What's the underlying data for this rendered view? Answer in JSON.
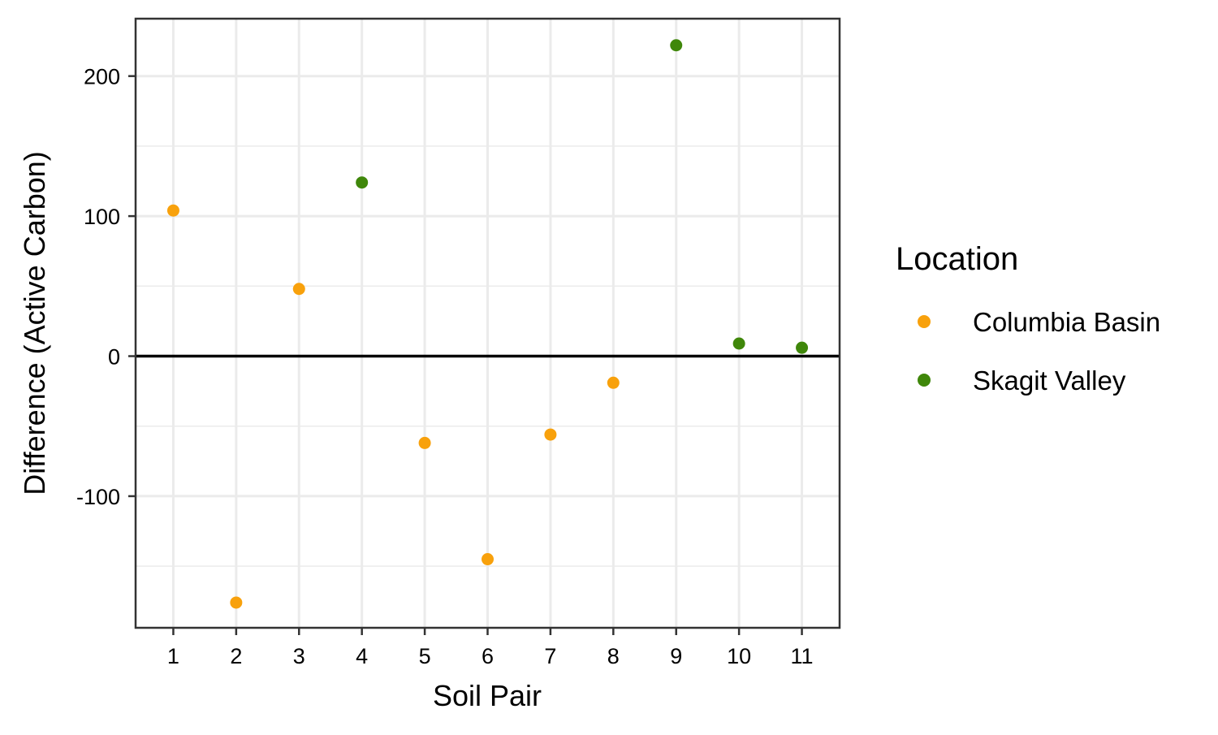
{
  "chart_data": {
    "type": "scatter",
    "title": "",
    "xlabel": "Soil Pair",
    "ylabel": "Difference (Active Carbon)",
    "xlim": [
      0.4,
      11.6
    ],
    "ylim": [
      -194,
      241
    ],
    "x_ticks": [
      1,
      2,
      3,
      4,
      5,
      6,
      7,
      8,
      9,
      10,
      11
    ],
    "x_tick_labels": [
      "1",
      "2",
      "3",
      "4",
      "5",
      "6",
      "7",
      "8",
      "9",
      "10",
      "11"
    ],
    "y_ticks": [
      -100,
      0,
      100,
      200
    ],
    "y_tick_labels": [
      "-100",
      "0",
      "100",
      "200"
    ],
    "y_minor_ticks": [
      -150,
      -50,
      50,
      150
    ],
    "grid": true,
    "reference_line_y": 0,
    "legend": {
      "title": "Location",
      "position": "right"
    },
    "series": [
      {
        "name": "Columbia Basin",
        "color": "#f8a10c",
        "points": [
          {
            "x": 1,
            "y": 104
          },
          {
            "x": 2,
            "y": -176
          },
          {
            "x": 3,
            "y": 48
          },
          {
            "x": 5,
            "y": -62
          },
          {
            "x": 6,
            "y": -145
          },
          {
            "x": 7,
            "y": -56
          },
          {
            "x": 8,
            "y": -19
          }
        ]
      },
      {
        "name": "Skagit Valley",
        "color": "#3f870a",
        "points": [
          {
            "x": 4,
            "y": 124
          },
          {
            "x": 9,
            "y": 222
          },
          {
            "x": 10,
            "y": 9
          },
          {
            "x": 11,
            "y": 6
          }
        ]
      }
    ]
  }
}
